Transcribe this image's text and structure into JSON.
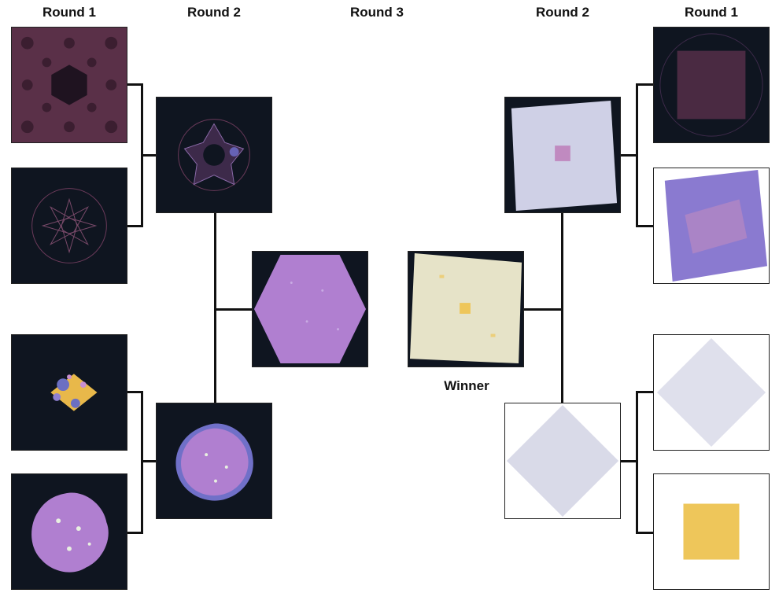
{
  "headers": {
    "left_round1": "Round 1",
    "left_round2": "Round 2",
    "round3": "Round 3",
    "right_round2": "Round 2",
    "right_round1": "Round 1"
  },
  "winner_label": "Winner",
  "colors": {
    "dark_bg": "#0f1520",
    "white_bg": "#ffffff",
    "mauve": "#5a3048",
    "violet": "#b07fd0",
    "lavender": "#cfd0e6",
    "gold": "#eec65a",
    "cream": "#e6e3c8",
    "line": "#111111"
  }
}
